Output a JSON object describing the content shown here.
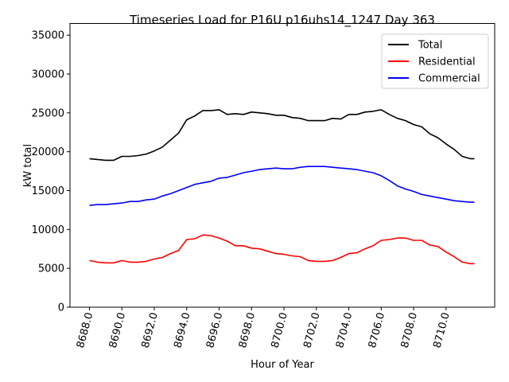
{
  "chart_data": {
    "type": "line",
    "title": "Timeseries Load for P16U p16uhs14_1247  Day 363",
    "xlabel": "Hour of Year",
    "ylabel": "kW total",
    "xlim": [
      8686.8,
      8713.0
    ],
    "ylim": [
      0,
      36500
    ],
    "x_ticks": [
      8688,
      8690,
      8692,
      8694,
      8696,
      8698,
      8700,
      8702,
      8704,
      8706,
      8708,
      8710
    ],
    "x_tick_labels": [
      "8688.0",
      "8690.0",
      "8692.0",
      "8694.0",
      "8696.0",
      "8698.0",
      "8700.0",
      "8702.0",
      "8704.0",
      "8706.0",
      "8708.0",
      "8710.0"
    ],
    "y_ticks": [
      0,
      5000,
      10000,
      15000,
      20000,
      25000,
      30000,
      35000
    ],
    "y_tick_labels": [
      "0",
      "5000",
      "10000",
      "15000",
      "20000",
      "25000",
      "30000",
      "35000"
    ],
    "grid": false,
    "legend_position": "top-right",
    "x": [
      8688,
      8688.5,
      8689,
      8689.5,
      8690,
      8690.5,
      8691,
      8691.5,
      8692,
      8692.5,
      8693,
      8693.5,
      8694,
      8694.5,
      8695,
      8695.5,
      8696,
      8696.5,
      8697,
      8697.5,
      8698,
      8698.5,
      8699,
      8699.5,
      8700,
      8700.5,
      8701,
      8701.5,
      8702,
      8702.5,
      8703,
      8703.5,
      8704,
      8704.5,
      8705,
      8705.5,
      8706,
      8706.5,
      8707,
      8707.5,
      8708,
      8708.5,
      8709,
      8709.5,
      8710,
      8710.5,
      8711,
      8711.5,
      8711.75
    ],
    "series": [
      {
        "name": "Total",
        "color": "#000000",
        "values": [
          19100,
          19000,
          18900,
          18900,
          19400,
          19400,
          19500,
          19700,
          20100,
          20600,
          21500,
          22400,
          24100,
          24600,
          25300,
          25300,
          25400,
          24800,
          24900,
          24800,
          25100,
          25000,
          24900,
          24700,
          24700,
          24400,
          24300,
          24000,
          24000,
          24000,
          24300,
          24200,
          24800,
          24800,
          25100,
          25200,
          25400,
          24800,
          24300,
          24000,
          23500,
          23200,
          22300,
          21800,
          21000,
          20300,
          19400,
          19100,
          19100
        ]
      },
      {
        "name": "Residential",
        "color": "#ff0000",
        "values": [
          6000,
          5800,
          5700,
          5700,
          6000,
          5800,
          5800,
          5900,
          6200,
          6400,
          6900,
          7300,
          8700,
          8800,
          9300,
          9200,
          8900,
          8500,
          7900,
          7900,
          7600,
          7500,
          7200,
          6900,
          6800,
          6600,
          6500,
          6000,
          5900,
          5900,
          6000,
          6400,
          6900,
          7000,
          7500,
          7900,
          8600,
          8700,
          8900,
          8900,
          8600,
          8600,
          8000,
          7800,
          7100,
          6500,
          5800,
          5600,
          5600
        ]
      },
      {
        "name": "Commercial",
        "color": "#0000ff",
        "values": [
          13100,
          13200,
          13200,
          13300,
          13400,
          13600,
          13600,
          13800,
          13900,
          14300,
          14600,
          15000,
          15400,
          15800,
          16000,
          16200,
          16600,
          16700,
          17000,
          17300,
          17500,
          17700,
          17800,
          17900,
          17800,
          17800,
          18000,
          18100,
          18100,
          18100,
          18000,
          17900,
          17800,
          17700,
          17500,
          17300,
          16900,
          16300,
          15600,
          15200,
          14900,
          14500,
          14300,
          14100,
          13900,
          13700,
          13600,
          13500,
          13500
        ]
      }
    ]
  }
}
